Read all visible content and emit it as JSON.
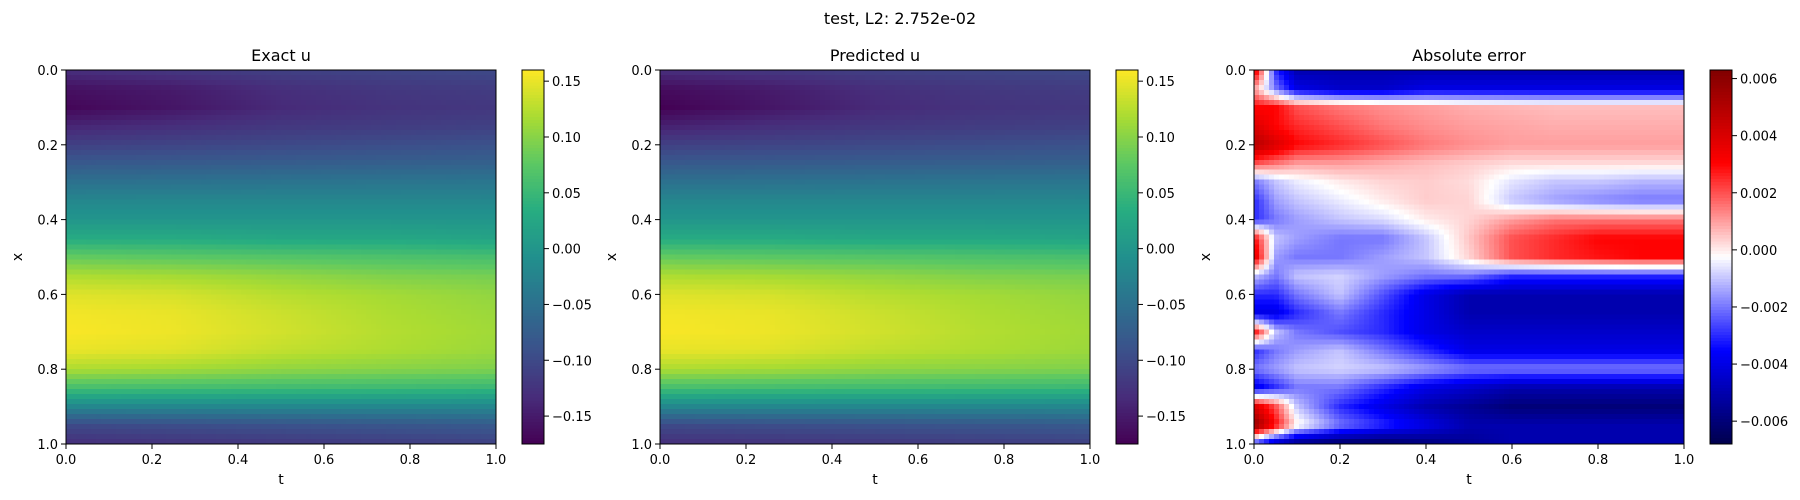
{
  "figure": {
    "suptitle": "test, L2: 2.752e-02"
  },
  "chart_data": [
    {
      "type": "heatmap",
      "title": "Exact u",
      "xlabel": "t",
      "ylabel": "x",
      "xlim": [
        0.0,
        1.0
      ],
      "ylim": [
        1.0,
        0.0
      ],
      "xticks": [
        0.0,
        0.2,
        0.4,
        0.6,
        0.8,
        1.0
      ],
      "xtick_labels": [
        "0.0",
        "0.2",
        "0.4",
        "0.6",
        "0.8",
        "1.0"
      ],
      "yticks": [
        0.0,
        0.2,
        0.4,
        0.6,
        0.8,
        1.0
      ],
      "ytick_labels": [
        "0.0",
        "0.2",
        "0.4",
        "0.6",
        "0.8",
        "1.0"
      ],
      "colormap": "viridis",
      "vmin": -0.175,
      "vmax": 0.16,
      "colorbar_ticks": [
        -0.15,
        -0.1,
        -0.05,
        0.0,
        0.05,
        0.1,
        0.15
      ],
      "colorbar_tick_labels": [
        "−0.15",
        "−0.10",
        "−0.05",
        "0.00",
        "0.05",
        "0.10",
        "0.15"
      ],
      "x": [
        0.0,
        0.25,
        0.5,
        0.75,
        1.0
      ],
      "y": [
        0.0,
        0.05,
        0.1,
        0.15,
        0.2,
        0.25,
        0.3,
        0.35,
        0.4,
        0.45,
        0.5,
        0.55,
        0.6,
        0.65,
        0.7,
        0.75,
        0.8,
        0.85,
        0.9,
        0.95,
        1.0
      ],
      "z": [
        [
          -0.13,
          -0.12,
          -0.11,
          -0.105,
          -0.1
        ],
        [
          -0.16,
          -0.15,
          -0.13,
          -0.12,
          -0.115
        ],
        [
          -0.17,
          -0.155,
          -0.135,
          -0.125,
          -0.12
        ],
        [
          -0.14,
          -0.13,
          -0.12,
          -0.115,
          -0.11
        ],
        [
          -0.11,
          -0.105,
          -0.1,
          -0.095,
          -0.09
        ],
        [
          -0.08,
          -0.078,
          -0.075,
          -0.072,
          -0.07
        ],
        [
          -0.05,
          -0.048,
          -0.046,
          -0.044,
          -0.043
        ],
        [
          -0.02,
          -0.02,
          -0.02,
          -0.02,
          -0.02
        ],
        [
          0.0,
          0.0,
          0.0,
          0.0,
          0.0
        ],
        [
          0.03,
          0.03,
          0.025,
          0.025,
          0.02
        ],
        [
          0.08,
          0.075,
          0.07,
          0.065,
          0.06
        ],
        [
          0.12,
          0.115,
          0.105,
          0.095,
          0.09
        ],
        [
          0.145,
          0.14,
          0.125,
          0.115,
          0.105
        ],
        [
          0.155,
          0.15,
          0.135,
          0.12,
          0.11
        ],
        [
          0.158,
          0.152,
          0.138,
          0.123,
          0.113
        ],
        [
          0.15,
          0.145,
          0.13,
          0.12,
          0.11
        ],
        [
          0.12,
          0.115,
          0.105,
          0.1,
          0.095
        ],
        [
          0.06,
          0.058,
          0.055,
          0.053,
          0.05
        ],
        [
          -0.02,
          -0.02,
          -0.02,
          -0.02,
          -0.02
        ],
        [
          -0.1,
          -0.095,
          -0.09,
          -0.085,
          -0.08
        ],
        [
          -0.13,
          -0.125,
          -0.12,
          -0.115,
          -0.11
        ]
      ]
    },
    {
      "type": "heatmap",
      "title": "Predicted u",
      "xlabel": "t",
      "ylabel": "x",
      "xlim": [
        0.0,
        1.0
      ],
      "ylim": [
        1.0,
        0.0
      ],
      "xticks": [
        0.0,
        0.2,
        0.4,
        0.6,
        0.8,
        1.0
      ],
      "xtick_labels": [
        "0.0",
        "0.2",
        "0.4",
        "0.6",
        "0.8",
        "1.0"
      ],
      "yticks": [
        0.0,
        0.2,
        0.4,
        0.6,
        0.8,
        1.0
      ],
      "ytick_labels": [
        "0.0",
        "0.2",
        "0.4",
        "0.6",
        "0.8",
        "1.0"
      ],
      "colormap": "viridis",
      "vmin": -0.175,
      "vmax": 0.16,
      "colorbar_ticks": [
        -0.15,
        -0.1,
        -0.05,
        0.0,
        0.05,
        0.1,
        0.15
      ],
      "colorbar_tick_labels": [
        "−0.15",
        "−0.10",
        "−0.05",
        "0.00",
        "0.05",
        "0.10",
        "0.15"
      ],
      "x": [
        0.0,
        0.25,
        0.5,
        0.75,
        1.0
      ],
      "y": [
        0.0,
        0.05,
        0.1,
        0.15,
        0.2,
        0.25,
        0.3,
        0.35,
        0.4,
        0.45,
        0.5,
        0.55,
        0.6,
        0.65,
        0.7,
        0.75,
        0.8,
        0.85,
        0.9,
        0.95,
        1.0
      ],
      "z": [
        [
          -0.13,
          -0.12,
          -0.11,
          -0.105,
          -0.1
        ],
        [
          -0.165,
          -0.15,
          -0.13,
          -0.12,
          -0.115
        ],
        [
          -0.175,
          -0.155,
          -0.135,
          -0.125,
          -0.12
        ],
        [
          -0.145,
          -0.13,
          -0.12,
          -0.115,
          -0.11
        ],
        [
          -0.11,
          -0.105,
          -0.1,
          -0.095,
          -0.09
        ],
        [
          -0.08,
          -0.078,
          -0.075,
          -0.072,
          -0.07
        ],
        [
          -0.05,
          -0.048,
          -0.046,
          -0.044,
          -0.043
        ],
        [
          -0.02,
          -0.02,
          -0.02,
          -0.02,
          -0.02
        ],
        [
          0.0,
          0.0,
          0.0,
          0.0,
          0.0
        ],
        [
          0.03,
          0.03,
          0.025,
          0.025,
          0.02
        ],
        [
          0.08,
          0.075,
          0.07,
          0.065,
          0.06
        ],
        [
          0.12,
          0.115,
          0.105,
          0.095,
          0.09
        ],
        [
          0.145,
          0.14,
          0.125,
          0.115,
          0.105
        ],
        [
          0.155,
          0.15,
          0.135,
          0.12,
          0.11
        ],
        [
          0.158,
          0.152,
          0.138,
          0.123,
          0.113
        ],
        [
          0.15,
          0.145,
          0.13,
          0.12,
          0.11
        ],
        [
          0.12,
          0.115,
          0.105,
          0.1,
          0.095
        ],
        [
          0.06,
          0.058,
          0.055,
          0.053,
          0.05
        ],
        [
          -0.02,
          -0.02,
          -0.02,
          -0.02,
          -0.02
        ],
        [
          -0.1,
          -0.095,
          -0.09,
          -0.085,
          -0.08
        ],
        [
          -0.13,
          -0.125,
          -0.12,
          -0.115,
          -0.11
        ]
      ]
    },
    {
      "type": "heatmap",
      "title": "Absolute error",
      "xlabel": "t",
      "ylabel": "x",
      "xlim": [
        0.0,
        1.0
      ],
      "ylim": [
        1.0,
        0.0
      ],
      "xticks": [
        0.0,
        0.2,
        0.4,
        0.6,
        0.8,
        1.0
      ],
      "xtick_labels": [
        "0.0",
        "0.2",
        "0.4",
        "0.6",
        "0.8",
        "1.0"
      ],
      "yticks": [
        0.0,
        0.2,
        0.4,
        0.6,
        0.8,
        1.0
      ],
      "ytick_labels": [
        "0.0",
        "0.2",
        "0.4",
        "0.6",
        "0.8",
        "1.0"
      ],
      "colormap": "seismic",
      "vmin": -0.0068,
      "vmax": 0.0063,
      "colorbar_ticks": [
        -0.006,
        -0.004,
        -0.002,
        0.0,
        0.002,
        0.004,
        0.006
      ],
      "colorbar_tick_labels": [
        "−0.006",
        "−0.004",
        "−0.002",
        "0.000",
        "0.002",
        "0.004",
        "0.006"
      ],
      "x": [
        0.0,
        0.05,
        0.1,
        0.2,
        0.3,
        0.4,
        0.5,
        0.6,
        0.7,
        0.8,
        0.9,
        1.0
      ],
      "y": [
        0.0,
        0.05,
        0.1,
        0.15,
        0.2,
        0.25,
        0.3,
        0.35,
        0.4,
        0.45,
        0.5,
        0.55,
        0.6,
        0.65,
        0.7,
        0.75,
        0.8,
        0.85,
        0.9,
        0.95,
        1.0
      ],
      "z": [
        [
          0.004,
          -0.003,
          -0.005,
          -0.005,
          -0.005,
          -0.005,
          -0.005,
          -0.005,
          -0.005,
          -0.005,
          -0.005,
          -0.005
        ],
        [
          0.001,
          -0.002,
          -0.004,
          -0.0045,
          -0.0045,
          -0.004,
          -0.004,
          -0.004,
          -0.004,
          -0.004,
          -0.004,
          -0.004
        ],
        [
          0.003,
          0.003,
          0.002,
          0.0015,
          0.0012,
          0.001,
          0.0008,
          0.0007,
          0.0006,
          0.0006,
          0.0006,
          0.0006
        ],
        [
          0.004,
          0.003,
          0.0025,
          0.002,
          0.0015,
          0.0012,
          0.001,
          0.0009,
          0.0008,
          0.0008,
          0.0008,
          0.0008
        ],
        [
          0.005,
          0.004,
          0.003,
          0.0025,
          0.002,
          0.0015,
          0.0012,
          0.001,
          0.001,
          0.001,
          0.001,
          0.001
        ],
        [
          0.002,
          0.0015,
          0.001,
          0.001,
          0.0008,
          0.0006,
          0.0004,
          0.0002,
          0.0002,
          0.0002,
          0.0002,
          0.0002
        ],
        [
          -0.002,
          -0.001,
          -0.0005,
          0.0,
          0.0003,
          0.0004,
          0.0002,
          -0.0006,
          -0.001,
          -0.001,
          -0.0012,
          -0.0012
        ],
        [
          -0.003,
          -0.0015,
          -0.001,
          -0.0005,
          0.0,
          0.0004,
          0.0003,
          -0.001,
          -0.0015,
          -0.0018,
          -0.002,
          -0.002
        ],
        [
          -0.003,
          -0.002,
          -0.0015,
          -0.001,
          -0.0007,
          0.0,
          0.0003,
          0.001,
          0.0015,
          0.0015,
          0.0015,
          0.0015
        ],
        [
          0.003,
          -0.001,
          -0.0015,
          -0.002,
          -0.002,
          -0.001,
          0.0005,
          0.002,
          0.0025,
          0.003,
          0.003,
          0.003
        ],
        [
          0.004,
          -0.0015,
          -0.002,
          -0.002,
          -0.0015,
          -0.001,
          0.0003,
          0.002,
          0.0025,
          0.0028,
          0.003,
          0.003
        ],
        [
          -0.001,
          -0.002,
          -0.001,
          -0.0008,
          -0.0015,
          -0.002,
          -0.002,
          -0.003,
          -0.003,
          -0.003,
          -0.003,
          -0.003
        ],
        [
          -0.003,
          -0.003,
          -0.002,
          -0.001,
          -0.0025,
          -0.004,
          -0.005,
          -0.005,
          -0.005,
          -0.005,
          -0.005,
          -0.005
        ],
        [
          -0.004,
          -0.004,
          -0.003,
          -0.002,
          -0.003,
          -0.004,
          -0.005,
          -0.005,
          -0.005,
          -0.005,
          -0.005,
          -0.005
        ],
        [
          0.003,
          -0.001,
          -0.002,
          -0.0025,
          -0.003,
          -0.004,
          -0.0045,
          -0.0045,
          -0.0045,
          -0.0045,
          -0.0045,
          -0.0045
        ],
        [
          -0.003,
          -0.002,
          -0.0015,
          -0.001,
          -0.002,
          -0.003,
          -0.004,
          -0.004,
          -0.004,
          -0.004,
          -0.004,
          -0.004
        ],
        [
          -0.002,
          -0.0015,
          -0.001,
          -0.0008,
          -0.001,
          -0.0015,
          -0.002,
          -0.002,
          -0.002,
          -0.002,
          -0.002,
          -0.002
        ],
        [
          -0.004,
          -0.003,
          -0.002,
          -0.002,
          -0.003,
          -0.004,
          -0.0045,
          -0.005,
          -0.005,
          -0.005,
          -0.005,
          -0.005
        ],
        [
          0.004,
          0.002,
          -0.001,
          -0.003,
          -0.004,
          -0.005,
          -0.0055,
          -0.006,
          -0.006,
          -0.006,
          -0.006,
          -0.006
        ],
        [
          0.006,
          0.003,
          0.0,
          -0.002,
          -0.003,
          -0.004,
          -0.005,
          -0.005,
          -0.005,
          -0.005,
          -0.005,
          -0.005
        ],
        [
          -0.003,
          -0.005,
          -0.006,
          -0.0065,
          -0.0065,
          -0.006,
          -0.0055,
          -0.005,
          -0.005,
          -0.005,
          -0.005,
          -0.005
        ]
      ]
    }
  ]
}
